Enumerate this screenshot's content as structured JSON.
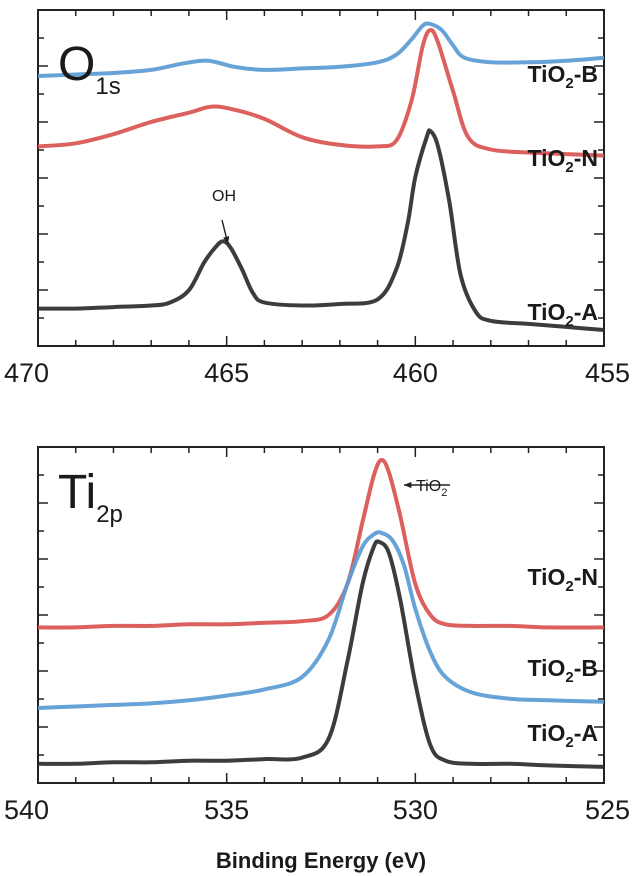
{
  "chart_data": [
    {
      "type": "line",
      "title": "O",
      "title_sub": "1s",
      "xlabel": "",
      "ylabel": "",
      "xlim": [
        470,
        455
      ],
      "x_reversed": true,
      "xticks": [
        470,
        465,
        460,
        455
      ],
      "yticks_unlabeled": true,
      "grid": false,
      "annotations": [
        {
          "text": "OH",
          "x": 465.0
        }
      ],
      "series": [
        {
          "name": "TiO",
          "name_sub": "2",
          "name_suffix": "-B",
          "color": "#5b9bd5",
          "points": [
            [
              470,
              0.83
            ],
            [
              469,
              0.835
            ],
            [
              468,
              0.84
            ],
            [
              467,
              0.85
            ],
            [
              466.2,
              0.87
            ],
            [
              465.5,
              0.88
            ],
            [
              464.8,
              0.86
            ],
            [
              464,
              0.85
            ],
            [
              463,
              0.855
            ],
            [
              462,
              0.86
            ],
            [
              461,
              0.875
            ],
            [
              460.5,
              0.9
            ],
            [
              460.1,
              0.95
            ],
            [
              459.8,
              0.995
            ],
            [
              459.6,
              1.0
            ],
            [
              459.3,
              0.98
            ],
            [
              459,
              0.93
            ],
            [
              458.7,
              0.89
            ],
            [
              458,
              0.875
            ],
            [
              457,
              0.875
            ],
            [
              456,
              0.88
            ],
            [
              455,
              0.89
            ]
          ]
        },
        {
          "name": "TiO",
          "name_sub": "2",
          "name_suffix": "-N",
          "color": "#d9534f",
          "points": [
            [
              470,
              0.6
            ],
            [
              469,
              0.61
            ],
            [
              468,
              0.64
            ],
            [
              467,
              0.68
            ],
            [
              466,
              0.71
            ],
            [
              465.4,
              0.73
            ],
            [
              464.8,
              0.72
            ],
            [
              464,
              0.69
            ],
            [
              463,
              0.63
            ],
            [
              462,
              0.605
            ],
            [
              461,
              0.6
            ],
            [
              460.5,
              0.62
            ],
            [
              460.1,
              0.75
            ],
            [
              459.8,
              0.93
            ],
            [
              459.6,
              0.98
            ],
            [
              459.4,
              0.94
            ],
            [
              459,
              0.78
            ],
            [
              458.6,
              0.63
            ],
            [
              458,
              0.59
            ],
            [
              457,
              0.58
            ],
            [
              456,
              0.575
            ],
            [
              455,
              0.57
            ]
          ]
        },
        {
          "name": "TiO",
          "name_sub": "2",
          "name_suffix": "-A",
          "color": "#2b2b2b",
          "points": [
            [
              470,
              0.07
            ],
            [
              469,
              0.07
            ],
            [
              468,
              0.075
            ],
            [
              467,
              0.08
            ],
            [
              466.5,
              0.09
            ],
            [
              466,
              0.13
            ],
            [
              465.6,
              0.22
            ],
            [
              465.3,
              0.27
            ],
            [
              465.1,
              0.29
            ],
            [
              464.9,
              0.27
            ],
            [
              464.6,
              0.2
            ],
            [
              464.3,
              0.12
            ],
            [
              464,
              0.09
            ],
            [
              463,
              0.08
            ],
            [
              462,
              0.085
            ],
            [
              461,
              0.1
            ],
            [
              460.5,
              0.2
            ],
            [
              460.2,
              0.35
            ],
            [
              460,
              0.5
            ],
            [
              459.7,
              0.63
            ],
            [
              459.6,
              0.65
            ],
            [
              459.4,
              0.6
            ],
            [
              459.1,
              0.42
            ],
            [
              458.8,
              0.18
            ],
            [
              458.4,
              0.06
            ],
            [
              458,
              0.03
            ],
            [
              457,
              0.02
            ],
            [
              456,
              0.01
            ],
            [
              455,
              0.0
            ]
          ]
        }
      ]
    },
    {
      "type": "line",
      "title": "Ti",
      "title_sub": "2p",
      "xlabel": "Binding Energy (eV)",
      "ylabel": "",
      "xlim": [
        540,
        525
      ],
      "x_reversed": true,
      "xticks": [
        540,
        535,
        530,
        525
      ],
      "yticks_unlabeled": true,
      "grid": false,
      "annotations": [
        {
          "text": "TiO",
          "text_sub": "2",
          "x": 531.0
        }
      ],
      "series": [
        {
          "name": "TiO",
          "name_sub": "2",
          "name_suffix": "-N",
          "color": "#d9534f",
          "points": [
            [
              540,
              0.46
            ],
            [
              539,
              0.46
            ],
            [
              538,
              0.465
            ],
            [
              537,
              0.465
            ],
            [
              536,
              0.47
            ],
            [
              535,
              0.47
            ],
            [
              534,
              0.475
            ],
            [
              533,
              0.48
            ],
            [
              532.3,
              0.5
            ],
            [
              531.8,
              0.6
            ],
            [
              531.4,
              0.8
            ],
            [
              531.1,
              0.95
            ],
            [
              530.9,
              1.0
            ],
            [
              530.7,
              0.96
            ],
            [
              530.4,
              0.82
            ],
            [
              530,
              0.6
            ],
            [
              529.6,
              0.5
            ],
            [
              529.2,
              0.47
            ],
            [
              528.5,
              0.465
            ],
            [
              527.5,
              0.465
            ],
            [
              526.5,
              0.46
            ],
            [
              525,
              0.46
            ]
          ]
        },
        {
          "name": "TiO",
          "name_sub": "2",
          "name_suffix": "-B",
          "color": "#5b9bd5",
          "points": [
            [
              540,
              0.2
            ],
            [
              539,
              0.205
            ],
            [
              538,
              0.21
            ],
            [
              537,
              0.215
            ],
            [
              536,
              0.225
            ],
            [
              535,
              0.24
            ],
            [
              534,
              0.26
            ],
            [
              533,
              0.3
            ],
            [
              532.3,
              0.42
            ],
            [
              531.8,
              0.6
            ],
            [
              531.4,
              0.72
            ],
            [
              531.1,
              0.76
            ],
            [
              530.9,
              0.765
            ],
            [
              530.6,
              0.74
            ],
            [
              530.3,
              0.66
            ],
            [
              530,
              0.52
            ],
            [
              529.6,
              0.38
            ],
            [
              529.2,
              0.3
            ],
            [
              528.5,
              0.25
            ],
            [
              527.5,
              0.23
            ],
            [
              526.5,
              0.225
            ],
            [
              525,
              0.22
            ]
          ]
        },
        {
          "name": "TiO",
          "name_sub": "2",
          "name_suffix": "-A",
          "color": "#2b2b2b",
          "points": [
            [
              540,
              0.02
            ],
            [
              539,
              0.02
            ],
            [
              538,
              0.025
            ],
            [
              537,
              0.025
            ],
            [
              536,
              0.03
            ],
            [
              535,
              0.03
            ],
            [
              534,
              0.035
            ],
            [
              533,
              0.04
            ],
            [
              532.3,
              0.1
            ],
            [
              531.8,
              0.35
            ],
            [
              531.4,
              0.6
            ],
            [
              531.1,
              0.72
            ],
            [
              530.95,
              0.735
            ],
            [
              530.7,
              0.7
            ],
            [
              530.4,
              0.55
            ],
            [
              530,
              0.28
            ],
            [
              529.6,
              0.08
            ],
            [
              529.2,
              0.03
            ],
            [
              528.5,
              0.02
            ],
            [
              527.5,
              0.02
            ],
            [
              526.5,
              0.015
            ],
            [
              525,
              0.01
            ]
          ]
        }
      ]
    }
  ]
}
